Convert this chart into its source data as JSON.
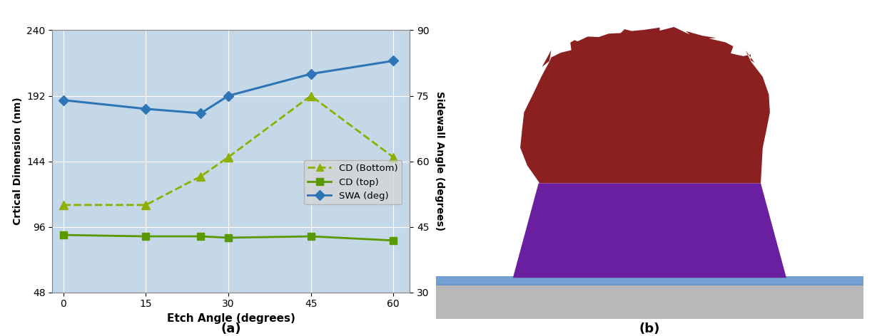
{
  "etch_angles": [
    0,
    15,
    25,
    30,
    45,
    60
  ],
  "cd_bottom": [
    112,
    112,
    133,
    147,
    192,
    147
  ],
  "cd_top": [
    90,
    89,
    89,
    88,
    89,
    86
  ],
  "swa": [
    74,
    72,
    71,
    75,
    80,
    83
  ],
  "left_ylim": [
    48,
    240
  ],
  "left_yticks": [
    48,
    96,
    144,
    192,
    240
  ],
  "right_ylim": [
    30,
    90
  ],
  "right_yticks": [
    30,
    45,
    60,
    75,
    90
  ],
  "xlim": [
    -2,
    63
  ],
  "xticks": [
    0,
    15,
    30,
    45,
    60
  ],
  "xlabel": "Etch Angle (degrees)",
  "ylabel_left": "Crtical Dimension (nm)",
  "ylabel_right": "Sidewall Angle (degrees)",
  "legend_labels": [
    "CD (Bottom)",
    "CD (top)",
    "SWA (deg)"
  ],
  "cd_bottom_color": "#8db000",
  "cd_top_color": "#5a9a00",
  "swa_color": "#2e75b6",
  "chart_bg_color": "#c5d8e8",
  "label_a": "(a)",
  "label_b": "(b)",
  "red_color": "#8b2020",
  "purple_color": "#6a1fa0",
  "blue_thin_color": "#5b8fcc",
  "gray_color": "#b8b8b8",
  "fig_bg_color": "#ffffff",
  "right_panel_bg": "#ffffff"
}
